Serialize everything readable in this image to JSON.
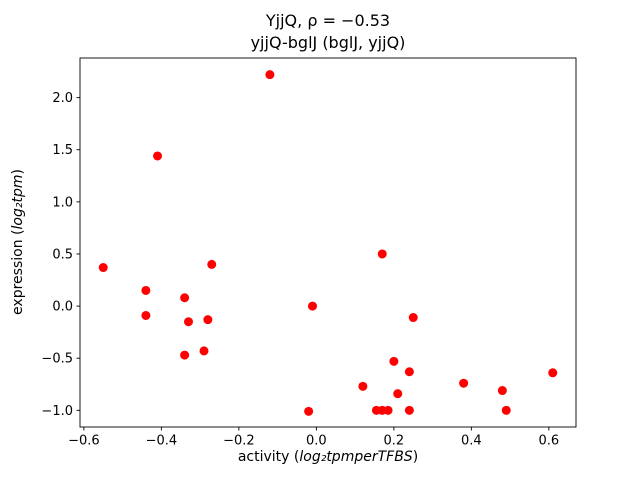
{
  "chart_data": {
    "type": "scatter",
    "title": "YjjQ, ρ = −0.53",
    "subtitle": "yjjQ-bglJ (bglJ, yjjQ)",
    "xlabel_parts": {
      "prefix": "activity (",
      "math": "log₂tpmperTFBS",
      "suffix": ")"
    },
    "ylabel_parts": {
      "prefix": "expression (",
      "math": "log₂tpm",
      "suffix": ")"
    },
    "xlim": [
      -0.61,
      0.67
    ],
    "ylim": [
      -1.16,
      2.38
    ],
    "xticks": {
      "values": [
        -0.6,
        -0.4,
        -0.2,
        0.0,
        0.2,
        0.4,
        0.6
      ],
      "labels": [
        "−0.6",
        "−0.4",
        "−0.2",
        "0.0",
        "0.2",
        "0.4",
        "0.6"
      ]
    },
    "yticks": {
      "values": [
        -1.0,
        -0.5,
        0.0,
        0.5,
        1.0,
        1.5,
        2.0
      ],
      "labels": [
        "−1.0",
        "−0.5",
        "0.0",
        "0.5",
        "1.0",
        "1.5",
        "2.0"
      ]
    },
    "marker_color": "#ff0000",
    "legend": "none",
    "grid": false,
    "points": [
      [
        -0.55,
        0.37
      ],
      [
        -0.44,
        0.15
      ],
      [
        -0.44,
        -0.09
      ],
      [
        -0.41,
        1.44
      ],
      [
        -0.34,
        0.08
      ],
      [
        -0.33,
        -0.15
      ],
      [
        -0.34,
        -0.47
      ],
      [
        -0.28,
        -0.13
      ],
      [
        -0.29,
        -0.43
      ],
      [
        -0.27,
        0.4
      ],
      [
        -0.12,
        2.22
      ],
      [
        -0.02,
        -1.01
      ],
      [
        -0.01,
        0.0
      ],
      [
        0.12,
        -0.77
      ],
      [
        0.155,
        -1.0
      ],
      [
        0.17,
        -1.0
      ],
      [
        0.185,
        -1.0
      ],
      [
        0.17,
        0.5
      ],
      [
        0.2,
        -0.53
      ],
      [
        0.21,
        -0.84
      ],
      [
        0.24,
        -0.63
      ],
      [
        0.24,
        -1.0
      ],
      [
        0.25,
        -0.11
      ],
      [
        0.38,
        -0.74
      ],
      [
        0.48,
        -0.81
      ],
      [
        0.49,
        -1.0
      ],
      [
        0.61,
        -0.64
      ]
    ]
  }
}
